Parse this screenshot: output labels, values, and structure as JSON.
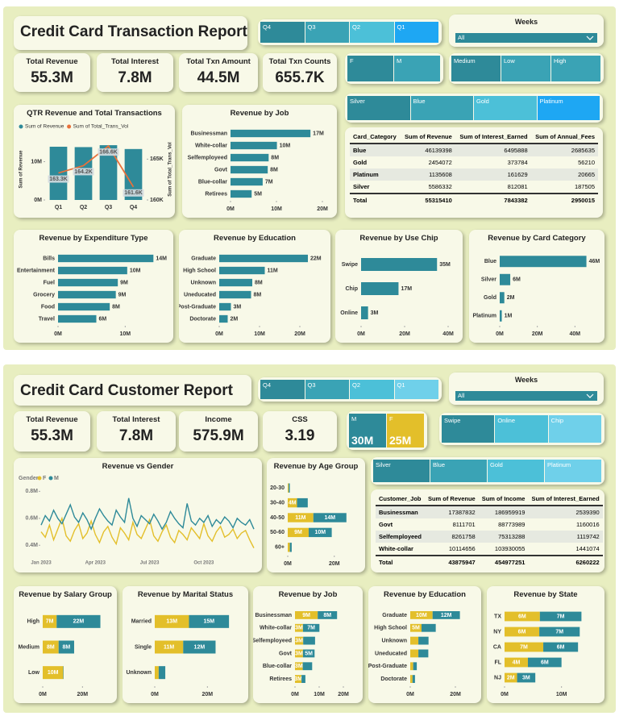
{
  "reports": [
    {
      "title": "Credit Card Transaction Report",
      "slicers": [
        {
          "items": [
            "Q4",
            "Q3",
            "Q2",
            "Q1"
          ],
          "colors": [
            "#2e8a99",
            "#3aa3b5",
            "#4cc0d8",
            "#1ea7f3"
          ]
        },
        {
          "label": "Weeks",
          "value": "All"
        },
        {
          "items": [
            "F",
            "M"
          ],
          "colors": [
            "#2e8a99",
            "#3aa3b5"
          ]
        },
        {
          "items": [
            "Medium",
            "Low",
            "High"
          ],
          "colors": [
            "#2e8a99",
            "#3aa3b5",
            "#3aa3b5"
          ]
        },
        {
          "items": [
            "Silver",
            "Blue",
            "Gold",
            "Platinum"
          ],
          "colors": [
            "#2e8a99",
            "#3aa3b5",
            "#4cc0d8",
            "#1ea7f3"
          ]
        }
      ],
      "kpis": [
        {
          "label": "Total Revenue",
          "value": "55.3M"
        },
        {
          "label": "Total Interest",
          "value": "7.8M"
        },
        {
          "label": "Total Txn Amount",
          "value": "44.5M"
        },
        {
          "label": "Total Txn Counts",
          "value": "655.7K"
        }
      ],
      "table": {
        "columns": [
          "Card_Category",
          "Sum of Revenue",
          "Sum of Interest_Earned",
          "Sum of Annual_Fees"
        ],
        "rows": [
          [
            "Blue",
            46139398,
            6495888,
            2685635
          ],
          [
            "Gold",
            2454072,
            373784,
            56210
          ],
          [
            "Platinum",
            1135608,
            161629,
            20665
          ],
          [
            "Silver",
            5586332,
            812081,
            187505
          ],
          [
            "Total",
            55315410,
            7843382,
            2950015
          ]
        ]
      }
    },
    {
      "title": "Credit Card Customer Report",
      "slicers": [
        {
          "items": [
            "Q4",
            "Q3",
            "Q2",
            "Q1"
          ],
          "colors": [
            "#2e8a99",
            "#3aa3b5",
            "#4cc0d8",
            "#6fd0ea"
          ]
        },
        {
          "label": "Weeks",
          "value": "All"
        },
        {
          "items": [
            "M",
            "F"
          ],
          "values": [
            "30M",
            "25M"
          ],
          "colors": [
            "#2e8a99",
            "#e3bf2a"
          ]
        },
        {
          "items": [
            "Swipe",
            "Online",
            "Chip"
          ],
          "colors": [
            "#2e8a99",
            "#4cc0d8",
            "#6fd0ea"
          ]
        },
        {
          "items": [
            "Silver",
            "Blue",
            "Gold",
            "Platinum"
          ],
          "colors": [
            "#2e8a99",
            "#3aa3b5",
            "#4cc0d8",
            "#6fd0ea"
          ]
        }
      ],
      "kpis": [
        {
          "label": "Total Revenue",
          "value": "55.3M"
        },
        {
          "label": "Total Interest",
          "value": "7.8M"
        },
        {
          "label": "Income",
          "value": "575.9M"
        },
        {
          "label": "CSS",
          "value": "3.19"
        }
      ],
      "table": {
        "columns": [
          "Customer_Job",
          "Sum of Revenue",
          "Sum of Income",
          "Sum of Interest_Earned"
        ],
        "rows": [
          [
            "Businessman",
            17387832,
            186959919,
            2539390
          ],
          [
            "Govt",
            8111701,
            88773989,
            1160016
          ],
          [
            "Selfemployeed",
            8261758,
            75313288,
            1119742
          ],
          [
            "White-collar",
            10114656,
            103930055,
            1441074
          ],
          [
            "Total",
            43875947,
            454977251,
            6260222
          ]
        ]
      }
    }
  ],
  "chart_data": [
    {
      "type": "combo",
      "title": "QTR Revenue and Total Transactions",
      "categories": [
        "Q1",
        "Q2",
        "Q3",
        "Q4"
      ],
      "series": [
        {
          "name": "Sum of Revenue",
          "color": "#2e8a99",
          "values": [
            13.9,
            13.8,
            14.3,
            13.3
          ]
        },
        {
          "name": "Sum of Total_Trans_Vol",
          "color": "#e8703a",
          "axis": "y2",
          "values": [
            163.3,
            164.2,
            166.6,
            161.6
          ],
          "value_labels": [
            "163.3K",
            "164.2K",
            "166.6K",
            "161.6K"
          ]
        }
      ],
      "ylabel": "Sum of Revenue",
      "y2label": "Sum of Total_Trans_Vol",
      "ylim": [
        0,
        16
      ],
      "yticks": [
        {
          "value": 0,
          "label": "0M"
        },
        {
          "value": 10,
          "label": "10M"
        }
      ],
      "y2lim": [
        160,
        167.5
      ],
      "y2ticks": [
        {
          "value": 160,
          "label": "160K"
        },
        {
          "value": 165,
          "label": "165K"
        }
      ]
    },
    {
      "type": "bar",
      "orientation": "horizontal",
      "title": "Revenue by Job",
      "categories": [
        "Businessman",
        "White-collar",
        "Selfemployeed",
        "Govt",
        "Blue-collar",
        "Retirees"
      ],
      "values": [
        17.4,
        10.1,
        8.3,
        8.1,
        7.0,
        4.6
      ],
      "value_labels": [
        "17M",
        "10M",
        "8M",
        "8M",
        "7M",
        "5M"
      ],
      "color": "#2e8a99",
      "xlim": [
        0,
        20
      ],
      "xticks": [
        {
          "value": 0,
          "label": "0M"
        },
        {
          "value": 10,
          "label": "10M"
        },
        {
          "value": 20,
          "label": "20M"
        }
      ]
    },
    {
      "type": "bar",
      "orientation": "horizontal",
      "title": "Revenue by Expenditure Type",
      "categories": [
        "Bills",
        "Entertainment",
        "Fuel",
        "Grocery",
        "Food",
        "Travel"
      ],
      "values": [
        14.2,
        10.3,
        8.9,
        8.6,
        7.7,
        5.7
      ],
      "value_labels": [
        "14M",
        "10M",
        "9M",
        "9M",
        "8M",
        "6M"
      ],
      "color": "#2e8a99",
      "xlim": [
        0,
        15
      ],
      "xticks": [
        {
          "value": 0,
          "label": "0M"
        },
        {
          "value": 10,
          "label": "10M"
        }
      ]
    },
    {
      "type": "bar",
      "orientation": "horizontal",
      "title": "Revenue by Education",
      "categories": [
        "Graduate",
        "High School",
        "Unknown",
        "Uneducated",
        "Post-Graduate",
        "Doctorate"
      ],
      "values": [
        22.0,
        11.3,
        8.2,
        7.9,
        2.9,
        2.1
      ],
      "value_labels": [
        "22M",
        "11M",
        "8M",
        "8M",
        "3M",
        "2M"
      ],
      "color": "#2e8a99",
      "xlim": [
        0,
        24
      ],
      "xticks": [
        {
          "value": 0,
          "label": "0M"
        },
        {
          "value": 10,
          "label": "10M"
        },
        {
          "value": 20,
          "label": "20M"
        }
      ]
    },
    {
      "type": "bar",
      "orientation": "horizontal",
      "title": "Revenue by Use Chip",
      "categories": [
        "Swipe",
        "Chip",
        "Online"
      ],
      "values": [
        34.9,
        17.2,
        3.2
      ],
      "value_labels": [
        "35M",
        "17M",
        "3M"
      ],
      "color": "#2e8a99",
      "xlim": [
        0,
        40
      ],
      "xticks": [
        {
          "value": 0,
          "label": "0M"
        },
        {
          "value": 20,
          "label": "20M"
        },
        {
          "value": 40,
          "label": "40M"
        }
      ]
    },
    {
      "type": "bar",
      "orientation": "horizontal",
      "title": "Revenue by Card Category",
      "categories": [
        "Blue",
        "Silver",
        "Gold",
        "Platinum"
      ],
      "values": [
        46.1,
        5.6,
        2.45,
        1.1
      ],
      "value_labels": [
        "46M",
        "6M",
        "2M",
        "1M"
      ],
      "color": "#2e8a99",
      "xlim": [
        0,
        48
      ],
      "xticks": [
        {
          "value": 0,
          "label": "0M"
        },
        {
          "value": 20,
          "label": "20M"
        },
        {
          "value": 40,
          "label": "40M"
        }
      ]
    },
    {
      "type": "line",
      "title": "Revenue vs Gender",
      "legend_title": "Gender",
      "categories": [
        "Jan 2023",
        null,
        null,
        null,
        null,
        null,
        null,
        null,
        null,
        null,
        null,
        null,
        null,
        "Apr 2023",
        null,
        null,
        null,
        null,
        null,
        null,
        null,
        null,
        null,
        null,
        null,
        null,
        "Jul 2023",
        null,
        null,
        null,
        null,
        null,
        null,
        null,
        null,
        null,
        null,
        null,
        null,
        "Oct 2023",
        null,
        null,
        null,
        null,
        null,
        null,
        null,
        null,
        null,
        null,
        null,
        null
      ],
      "series": [
        {
          "name": "F",
          "color": "#e3bf2a",
          "values": [
            0.5,
            0.46,
            0.55,
            0.44,
            0.52,
            0.6,
            0.47,
            0.43,
            0.51,
            0.56,
            0.45,
            0.49,
            0.58,
            0.48,
            0.42,
            0.5,
            0.54,
            0.46,
            0.41,
            0.53,
            0.49,
            0.44,
            0.57,
            0.48,
            0.45,
            0.52,
            0.59,
            0.47,
            0.43,
            0.5,
            0.55,
            0.46,
            0.42,
            0.51,
            0.48,
            0.44,
            0.53,
            0.49,
            0.45,
            0.56,
            0.47,
            0.43,
            0.5,
            0.54,
            0.46,
            0.48,
            0.52,
            0.45,
            0.49,
            0.51,
            0.44,
            0.38
          ]
        },
        {
          "name": "M",
          "color": "#2e8a99",
          "values": [
            0.55,
            0.62,
            0.58,
            0.66,
            0.6,
            0.56,
            0.63,
            0.7,
            0.61,
            0.57,
            0.64,
            0.59,
            0.52,
            0.6,
            0.67,
            0.62,
            0.58,
            0.55,
            0.66,
            0.61,
            0.57,
            0.75,
            0.6,
            0.54,
            0.62,
            0.59,
            0.56,
            0.63,
            0.58,
            0.52,
            0.57,
            0.65,
            0.6,
            0.56,
            0.53,
            0.71,
            0.58,
            0.55,
            0.6,
            0.57,
            0.62,
            0.54,
            0.59,
            0.56,
            0.61,
            0.58,
            0.53,
            0.6,
            0.57,
            0.55,
            0.59,
            0.52
          ]
        }
      ],
      "ylim": [
        0.33,
        0.82
      ],
      "yticks": [
        {
          "value": 0.4,
          "label": "0.4M"
        },
        {
          "value": 0.6,
          "label": "0.6M"
        },
        {
          "value": 0.8,
          "label": "0.8M"
        }
      ]
    },
    {
      "type": "bar",
      "orientation": "horizontal",
      "stacked": true,
      "title": "Revenue by Age Group",
      "categories": [
        "20-30",
        "30-40",
        "40-50",
        "50-60",
        "60+"
      ],
      "series": [
        {
          "color": "#e3bf2a",
          "values": [
            0.4,
            4.0,
            11.0,
            9.0,
            0.9
          ],
          "value_labels": [
            null,
            "4M",
            "11M",
            "9M",
            null
          ]
        },
        {
          "color": "#2e8a99",
          "values": [
            0.5,
            4.6,
            14.2,
            9.9,
            0.8
          ],
          "value_labels": [
            null,
            null,
            "14M",
            "10M",
            null
          ]
        }
      ],
      "xlim": [
        0,
        27
      ],
      "xticks": [
        {
          "value": 0,
          "label": "0M"
        },
        {
          "value": 20,
          "label": "20M"
        }
      ]
    },
    {
      "type": "bar",
      "orientation": "horizontal",
      "stacked": true,
      "title": "Revenue by Salary Group",
      "categories": [
        "High",
        "Medium",
        "Low"
      ],
      "series": [
        {
          "color": "#e3bf2a",
          "values": [
            7.0,
            8.0,
            10.3
          ],
          "value_labels": [
            "7M",
            "8M",
            "10M"
          ]
        },
        {
          "color": "#2e8a99",
          "values": [
            22.0,
            7.8,
            0.2
          ],
          "value_labels": [
            "22M",
            "8M",
            null
          ]
        }
      ],
      "xlim": [
        0,
        30
      ],
      "xticks": [
        {
          "value": 0,
          "label": "0M"
        },
        {
          "value": 20,
          "label": "20M"
        }
      ]
    },
    {
      "type": "bar",
      "orientation": "horizontal",
      "stacked": true,
      "title": "Revenue by Marital Status",
      "categories": [
        "Married",
        "Single",
        "Unknown"
      ],
      "series": [
        {
          "color": "#e3bf2a",
          "values": [
            13.0,
            10.8,
            1.5
          ],
          "value_labels": [
            "13M",
            "11M",
            null
          ]
        },
        {
          "color": "#2e8a99",
          "values": [
            15.2,
            12.3,
            2.5
          ],
          "value_labels": [
            "15M",
            "12M",
            null
          ]
        }
      ],
      "xlim": [
        0,
        30
      ],
      "xticks": [
        {
          "value": 0,
          "label": "0M"
        },
        {
          "value": 20,
          "label": "20M"
        }
      ]
    },
    {
      "type": "bar",
      "orientation": "horizontal",
      "stacked": true,
      "title": "Revenue by Job",
      "categories": [
        "Businessman",
        "White-collar",
        "Selfemployeed",
        "Govt",
        "Blue-collar",
        "Retirees"
      ],
      "series": [
        {
          "color": "#e3bf2a",
          "values": [
            9.4,
            3.3,
            3.4,
            3.3,
            3.2,
            2.7
          ],
          "value_labels": [
            "9M",
            "3M",
            "3M",
            "3M",
            "3M",
            "3M"
          ]
        },
        {
          "color": "#2e8a99",
          "values": [
            8.0,
            6.8,
            4.9,
            4.8,
            3.9,
            1.6
          ],
          "value_labels": [
            "8M",
            "7M",
            null,
            "5M",
            null,
            null
          ]
        }
      ],
      "xlim": [
        0,
        22
      ],
      "xticks": [
        {
          "value": 0,
          "label": "0M"
        },
        {
          "value": 10,
          "label": "10M"
        },
        {
          "value": 20,
          "label": "20M"
        }
      ]
    },
    {
      "type": "bar",
      "orientation": "horizontal",
      "stacked": true,
      "title": "Revenue by Education",
      "categories": [
        "Graduate",
        "High School",
        "Unknown",
        "Uneducated",
        "Post-Graduate",
        "Doctorate"
      ],
      "series": [
        {
          "color": "#e3bf2a",
          "values": [
            9.9,
            5.0,
            3.6,
            3.6,
            1.3,
            1.0
          ],
          "value_labels": [
            "10M",
            "5M",
            null,
            null,
            null,
            null
          ]
        },
        {
          "color": "#2e8a99",
          "values": [
            12.1,
            6.3,
            4.5,
            4.4,
            1.6,
            1.1
          ],
          "value_labels": [
            "12M",
            null,
            null,
            null,
            null,
            null
          ]
        }
      ],
      "xlim": [
        0,
        25
      ],
      "xticks": [
        {
          "value": 0,
          "label": "0M"
        },
        {
          "value": 20,
          "label": "20M"
        }
      ]
    },
    {
      "type": "bar",
      "orientation": "horizontal",
      "stacked": true,
      "title": "Revenue by State",
      "categories": [
        "TX",
        "NY",
        "CA",
        "FL",
        "NJ"
      ],
      "series": [
        {
          "color": "#e3bf2a",
          "values": [
            6.2,
            6.1,
            6.8,
            4.1,
            2.2
          ],
          "value_labels": [
            "6M",
            "6M",
            "7M",
            "4M",
            "2M"
          ]
        },
        {
          "color": "#2e8a99",
          "values": [
            7.3,
            7.1,
            6.1,
            5.9,
            3.2
          ],
          "value_labels": [
            "7M",
            "7M",
            "6M",
            "6M",
            "3M"
          ]
        }
      ],
      "xlim": [
        0,
        15
      ],
      "xticks": [
        {
          "value": 0,
          "label": "0M"
        },
        {
          "value": 10,
          "label": "10M"
        }
      ]
    }
  ]
}
